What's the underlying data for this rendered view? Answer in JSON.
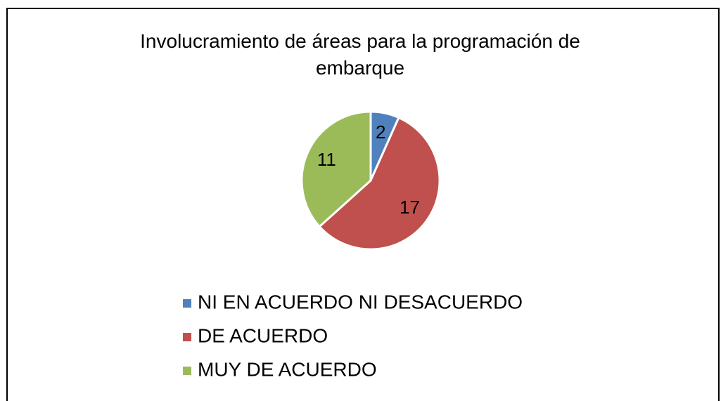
{
  "chart_data": {
    "type": "pie",
    "title": "Involucramiento de áreas para la programación de embarque",
    "categories": [
      "NI EN ACUERDO NI DESACUERDO",
      "DE ACUERDO",
      "MUY DE ACUERDO"
    ],
    "values": [
      2,
      17,
      11
    ],
    "colors": [
      "#4f81bd",
      "#c0504d",
      "#9bbb59"
    ]
  }
}
